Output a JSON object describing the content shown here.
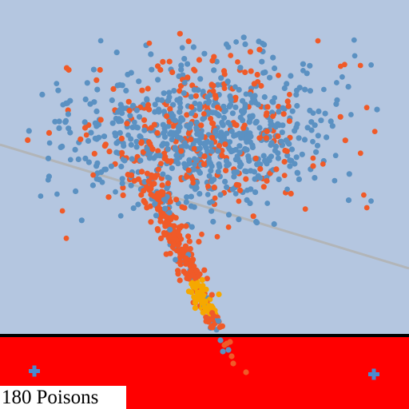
{
  "scene": {
    "colors": {
      "sky": "#b4c6e0",
      "danger_zone": "#ff0000",
      "boundary_line": "#000000",
      "guide_line": "#b2b5b8",
      "particle_blue": "#5b91c2",
      "particle_orange": "#f05a28",
      "particle_gold": "#f5a800",
      "cross_marker": "#4a8ad0"
    },
    "markers": [
      {
        "name": "left-cross-icon"
      },
      {
        "name": "right-cross-icon"
      }
    ]
  },
  "hud": {
    "poison_count": "180",
    "poison_label": "Poisons"
  }
}
